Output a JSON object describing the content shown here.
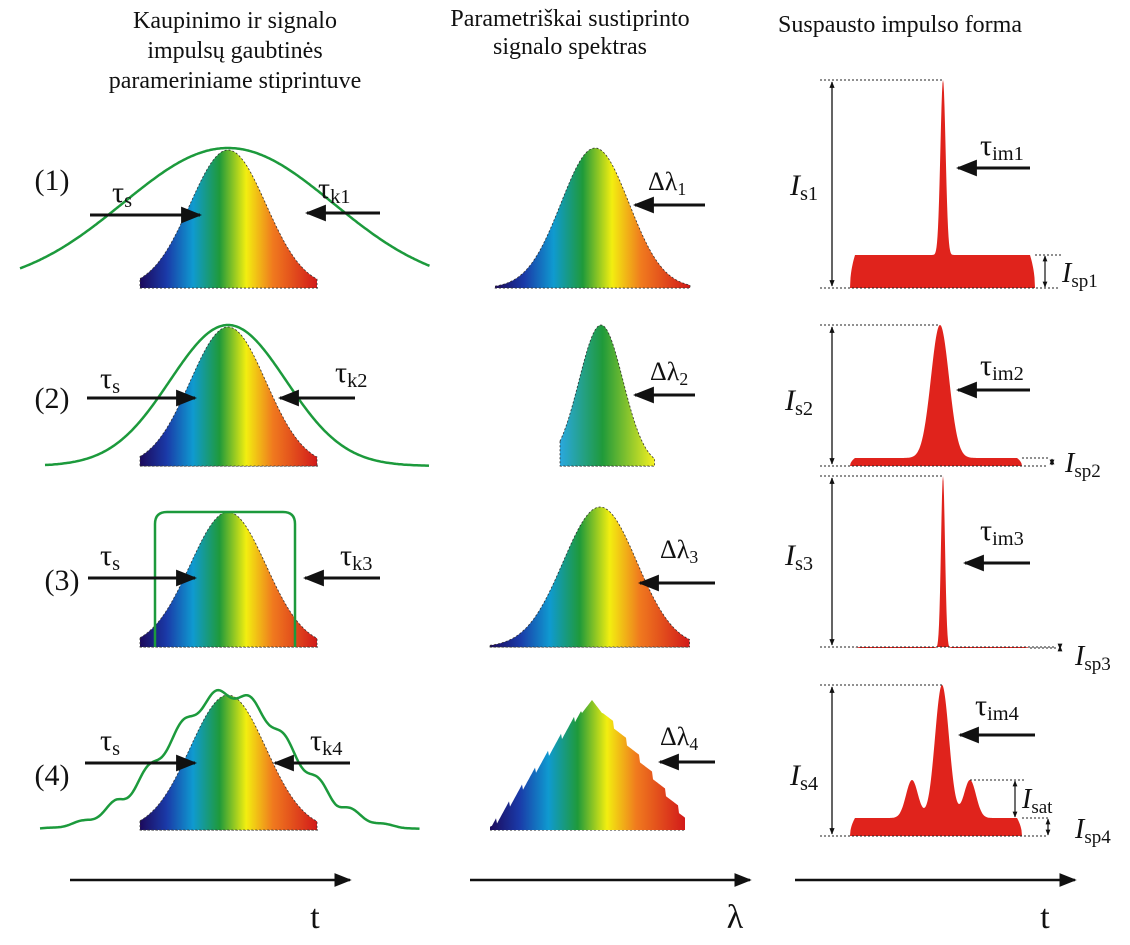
{
  "headers": {
    "envelopes": [
      "Kaupinimo ir signalo",
      "impulsų gaubtinės",
      "parameriniame stiprintuve"
    ],
    "spectrum": [
      "Parametriškai sustiprinto",
      "signalo spektras"
    ],
    "pulse": [
      "Suspausto impulso forma"
    ]
  },
  "rows": [
    {
      "label": "(1)",
      "tau_s": {
        "base": "τ",
        "sub": "s"
      },
      "tau_k": {
        "base": "τ",
        "sub": "k1"
      },
      "d_lambda": {
        "base": "Δλ",
        "sub": "1"
      },
      "tau_im": {
        "base": "τ",
        "sub": "im1"
      },
      "I_s": {
        "base": "I",
        "sub": "s1"
      },
      "I_sp": {
        "base": "I",
        "sub": "sp1"
      }
    },
    {
      "label": "(2)",
      "tau_s": {
        "base": "τ",
        "sub": "s"
      },
      "tau_k": {
        "base": "τ",
        "sub": "k2"
      },
      "d_lambda": {
        "base": "Δλ",
        "sub": "2"
      },
      "tau_im": {
        "base": "τ",
        "sub": "im2"
      },
      "I_s": {
        "base": "I",
        "sub": "s2"
      },
      "I_sp": {
        "base": "I",
        "sub": "sp2"
      }
    },
    {
      "label": "(3)",
      "tau_s": {
        "base": "τ",
        "sub": "s"
      },
      "tau_k": {
        "base": "τ",
        "sub": "k3"
      },
      "d_lambda": {
        "base": "Δλ",
        "sub": "3"
      },
      "tau_im": {
        "base": "τ",
        "sub": "im3"
      },
      "I_s": {
        "base": "I",
        "sub": "s3"
      },
      "I_sp": {
        "base": "I",
        "sub": "sp3"
      }
    },
    {
      "label": "(4)",
      "tau_s": {
        "base": "τ",
        "sub": "s"
      },
      "tau_k": {
        "base": "τ",
        "sub": "k4"
      },
      "d_lambda": {
        "base": "Δλ",
        "sub": "4"
      },
      "tau_im": {
        "base": "τ",
        "sub": "im4"
      },
      "I_s": {
        "base": "I",
        "sub": "s4"
      },
      "I_sp": {
        "base": "I",
        "sub": "sp4"
      },
      "I_sat": {
        "base": "I",
        "sub": "sat"
      }
    }
  ],
  "axes": [
    "t",
    "λ",
    "t"
  ]
}
